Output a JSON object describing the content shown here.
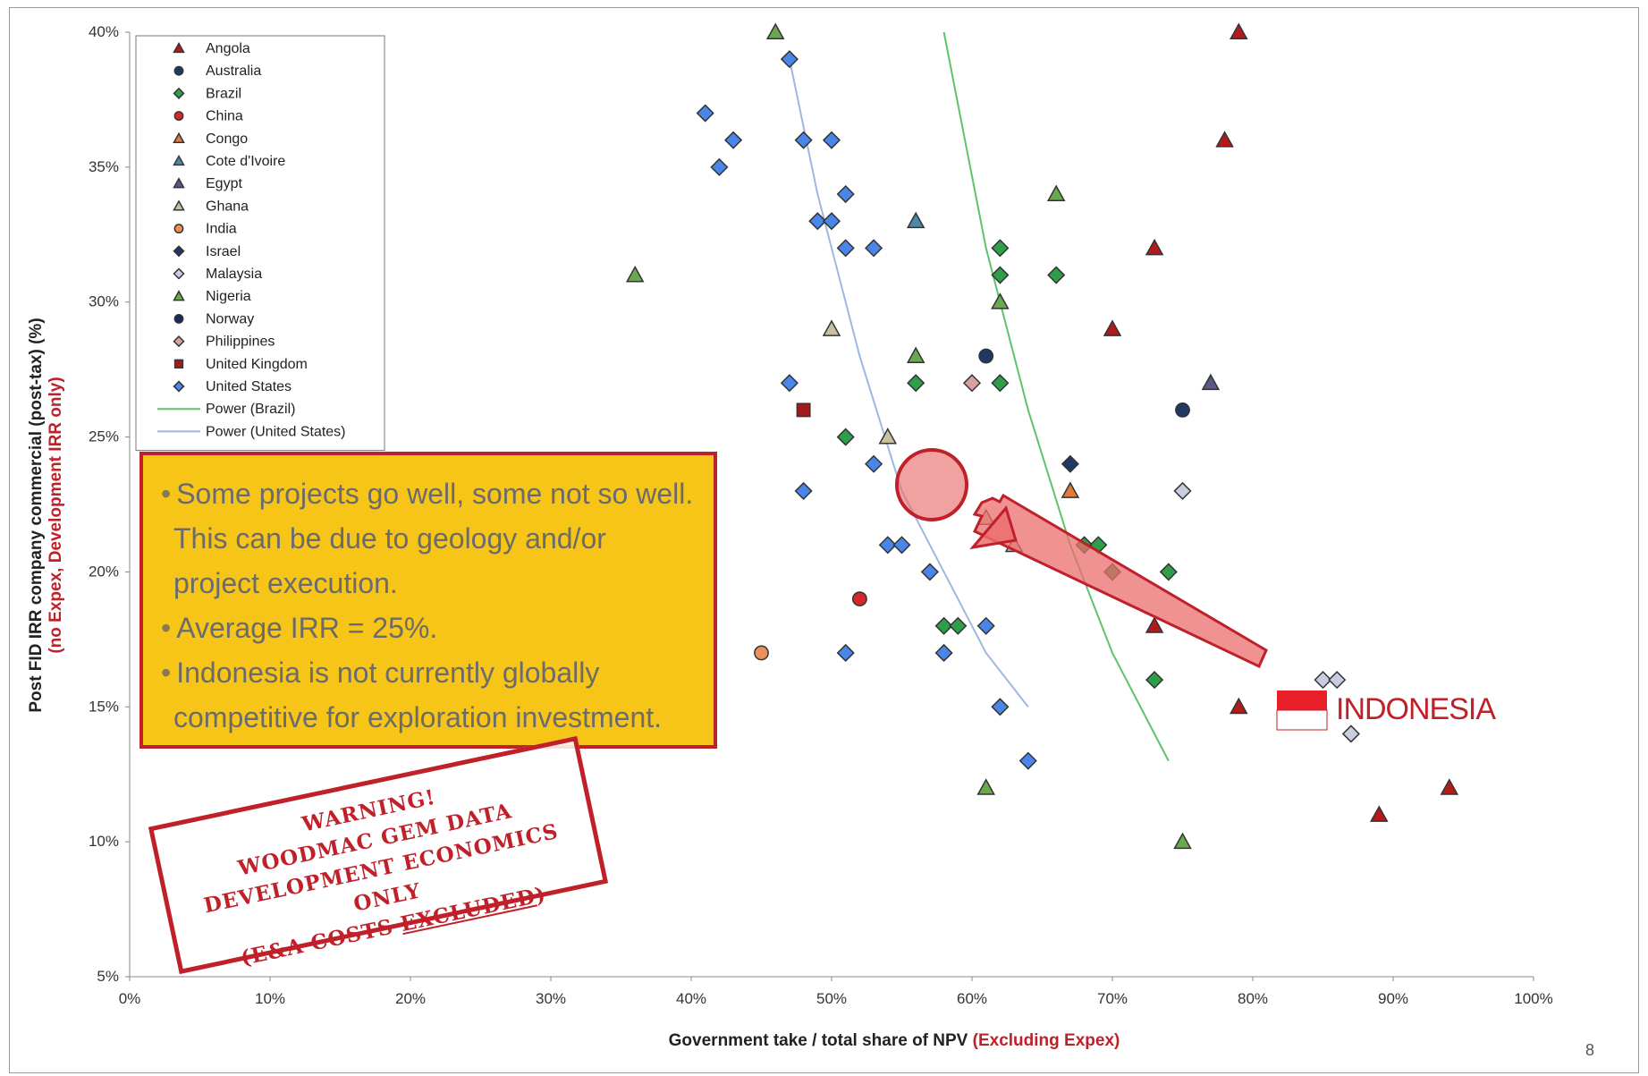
{
  "chart_data": {
    "type": "scatter",
    "title": "",
    "xlabel": "Government take / total share of NPV",
    "xlabel_highlight": "(Excluding Expex)",
    "ylabel": "Post FID IRR company commercial (post-tax) (%)",
    "ylabel_highlight": "(no Expex, Development IRR only)",
    "xlim": [
      0,
      100
    ],
    "ylim": [
      5,
      40
    ],
    "x_ticks": [
      0,
      10,
      20,
      30,
      40,
      50,
      60,
      70,
      80,
      90,
      100
    ],
    "x_tick_labels": [
      "0%",
      "10%",
      "20%",
      "30%",
      "40%",
      "50%",
      "60%",
      "70%",
      "80%",
      "90%",
      "100%"
    ],
    "y_ticks": [
      5,
      10,
      15,
      20,
      25,
      30,
      35,
      40
    ],
    "y_tick_labels": [
      "5%",
      "10%",
      "15%",
      "20%",
      "25%",
      "30%",
      "35%",
      "40%"
    ],
    "grid": false,
    "legend_position": "top-left",
    "series": [
      {
        "name": "Angola",
        "marker": "triangle",
        "color": "#b31b1b",
        "points": [
          [
            79,
            40
          ],
          [
            78,
            36
          ],
          [
            73,
            32
          ],
          [
            70,
            29
          ],
          [
            73,
            18
          ],
          [
            79,
            15
          ],
          [
            89,
            11
          ],
          [
            94,
            12
          ]
        ]
      },
      {
        "name": "Australia",
        "marker": "circle",
        "color": "#1f3864",
        "points": [
          [
            61,
            28
          ],
          [
            75,
            26
          ]
        ]
      },
      {
        "name": "Brazil",
        "marker": "diamond",
        "color": "#2e9e4a",
        "points": [
          [
            62,
            32
          ],
          [
            62,
            31
          ],
          [
            66,
            31
          ],
          [
            56,
            27
          ],
          [
            62,
            27
          ],
          [
            51,
            25
          ],
          [
            68,
            21
          ],
          [
            69,
            21
          ],
          [
            70,
            20
          ],
          [
            74,
            20
          ],
          [
            58,
            18
          ],
          [
            59,
            18
          ],
          [
            73,
            16
          ]
        ]
      },
      {
        "name": "China",
        "marker": "circle",
        "color": "#d62728",
        "points": [
          [
            52,
            19
          ]
        ]
      },
      {
        "name": "Congo",
        "marker": "triangle",
        "color": "#e07b39",
        "points": [
          [
            67,
            23
          ]
        ]
      },
      {
        "name": "Cote d'Ivoire",
        "marker": "triangle",
        "color": "#4a8aa8",
        "points": [
          [
            56,
            33
          ]
        ]
      },
      {
        "name": "Egypt",
        "marker": "triangle",
        "color": "#5a5a8a",
        "points": [
          [
            77,
            27
          ]
        ]
      },
      {
        "name": "Ghana",
        "marker": "triangle",
        "color": "#c8c0a0",
        "points": [
          [
            50,
            29
          ],
          [
            54,
            25
          ],
          [
            61,
            22
          ],
          [
            63,
            21
          ]
        ]
      },
      {
        "name": "India",
        "marker": "circle",
        "color": "#e8915a",
        "points": [
          [
            45,
            17
          ]
        ]
      },
      {
        "name": "Israel",
        "marker": "diamond",
        "color": "#1f3864",
        "points": [
          [
            67,
            24
          ]
        ]
      },
      {
        "name": "Malaysia",
        "marker": "diamond",
        "color": "#c9cde0",
        "points": [
          [
            75,
            23
          ],
          [
            85,
            16
          ],
          [
            86,
            16
          ],
          [
            87,
            14
          ]
        ]
      },
      {
        "name": "Nigeria",
        "marker": "triangle",
        "color": "#6aa84f",
        "points": [
          [
            46,
            40
          ],
          [
            36,
            31
          ],
          [
            66,
            34
          ],
          [
            62,
            30
          ],
          [
            56,
            28
          ],
          [
            61,
            12
          ],
          [
            75,
            10
          ]
        ]
      },
      {
        "name": "Norway",
        "marker": "circle",
        "color": "#1a2a5a",
        "points": []
      },
      {
        "name": "Philippines",
        "marker": "diamond",
        "color": "#d9a0a0",
        "points": [
          [
            60,
            27
          ]
        ]
      },
      {
        "name": "United Kingdom",
        "marker": "square",
        "color": "#a01c1c",
        "points": [
          [
            48,
            26
          ]
        ]
      },
      {
        "name": "United States",
        "marker": "diamond",
        "color": "#4a86e8",
        "points": [
          [
            47,
            39
          ],
          [
            41,
            37
          ],
          [
            43,
            36
          ],
          [
            48,
            36
          ],
          [
            50,
            36
          ],
          [
            42,
            35
          ],
          [
            51,
            34
          ],
          [
            49,
            33
          ],
          [
            50,
            33
          ],
          [
            51,
            32
          ],
          [
            53,
            32
          ],
          [
            47,
            27
          ],
          [
            53,
            24
          ],
          [
            48,
            23
          ],
          [
            54,
            21
          ],
          [
            55,
            21
          ],
          [
            57,
            20
          ],
          [
            61,
            18
          ],
          [
            51,
            17
          ],
          [
            58,
            17
          ],
          [
            62,
            15
          ],
          [
            64,
            13
          ]
        ]
      }
    ],
    "trendlines": [
      {
        "name": "Power (Brazil)",
        "color": "#5cc46a",
        "points": [
          [
            58,
            40
          ],
          [
            61,
            32
          ],
          [
            64,
            26
          ],
          [
            67,
            21
          ],
          [
            70,
            17
          ],
          [
            74,
            13
          ]
        ]
      },
      {
        "name": "Power (United States)",
        "color": "#9db8e0",
        "points": [
          [
            47,
            39
          ],
          [
            49,
            34
          ],
          [
            52,
            28
          ],
          [
            55,
            23
          ],
          [
            58,
            20
          ],
          [
            61,
            17
          ],
          [
            64,
            15
          ]
        ]
      }
    ],
    "annotations": {
      "indonesia_label": "INDONESIA",
      "page_number": "8"
    }
  },
  "callout": {
    "items": [
      "Some projects go well, some not so well.  This can be due to geology and/or project execution.",
      "Average IRR = 25%.",
      "Indonesia is not currently globally competitive for exploration investment."
    ]
  },
  "warning": {
    "line1": "WARNING!",
    "line2": "WOODMAC GEM DATA",
    "line3": "DEVELOPMENT ECONOMICS ONLY",
    "line4_pre": "(E&A COSTS ",
    "line4_u": "EXCLUDED",
    "line4_post": ")"
  },
  "colors": {
    "accent_red": "#c0202a",
    "callout_bg": "#f7c418"
  }
}
